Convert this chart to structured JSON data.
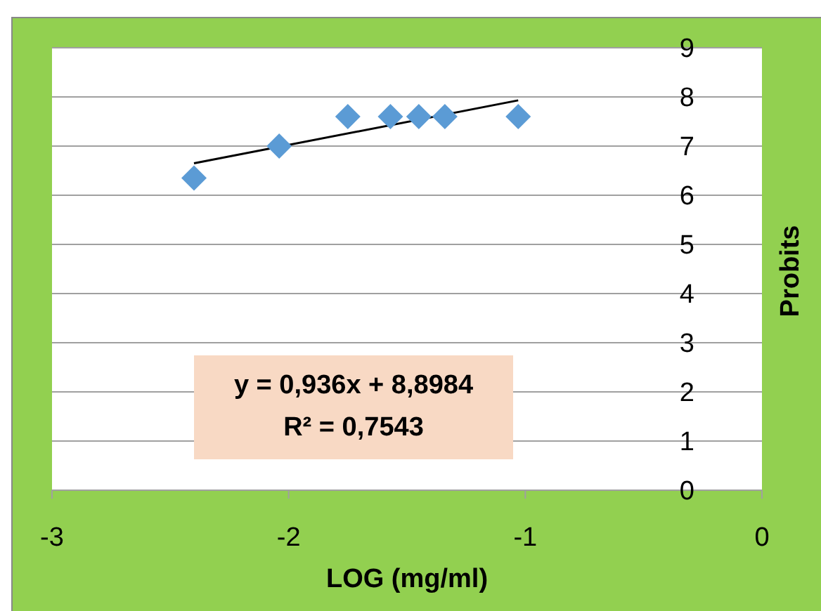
{
  "chart_data": {
    "type": "scatter",
    "xlabel": "LOG (mg/ml)",
    "ylabel": "Probits",
    "annotations": [
      "y = 0,936x + 8,8984",
      "R² = 0,7543"
    ],
    "series": [
      {
        "color": "#5b9bd5",
        "marker": "diamond",
        "x": [
          -2.4,
          -2.04,
          -1.75,
          -1.57,
          -1.45,
          -1.34,
          -1.03
        ],
        "values": [
          6.35,
          7.0,
          7.6,
          7.6,
          7.6,
          7.6,
          7.6
        ]
      },
      {
        "type": "line",
        "color": "#000000",
        "x": [
          -2.4,
          -1.03
        ],
        "values": [
          6.65,
          7.93
        ]
      }
    ],
    "xlim": [
      -3,
      0
    ],
    "xticks": [
      -3,
      -2,
      -1,
      0
    ],
    "ylim": [
      0,
      9
    ],
    "yticks": [
      0,
      1,
      2,
      3,
      4,
      5,
      6,
      7,
      8,
      9
    ],
    "grid": "y"
  }
}
